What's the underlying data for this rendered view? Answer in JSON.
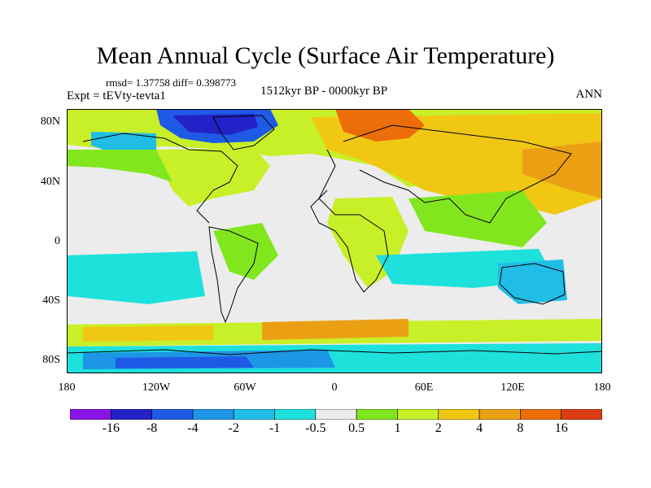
{
  "title": "Mean Annual Cycle (Surface Air Temperature)",
  "stats": "rmsd= 1.37758 diff= 0.398773",
  "experiment": "Expt = tEVty-tevta1",
  "period": "1512kyr BP - 0000kyr BP",
  "season": "ANN",
  "map": {
    "lat_labels": [
      "80N",
      "40N",
      "0",
      "40S",
      "80S"
    ],
    "lon_labels": [
      "180",
      "120W",
      "60W",
      "0",
      "60E",
      "120E",
      "180"
    ]
  },
  "colorbar": {
    "colors": [
      "#8a14e6",
      "#2222c8",
      "#1e5ae6",
      "#1e96e6",
      "#20bee6",
      "#1ee1dc",
      "#ececec",
      "#82e61e",
      "#c8f028",
      "#f0c814",
      "#eba014",
      "#eb6e0a",
      "#dc3c14"
    ],
    "labels": [
      "-16",
      "-8",
      "-4",
      "-2",
      "-1",
      "-0.5",
      "0.5",
      "1",
      "2",
      "4",
      "8",
      "16"
    ]
  }
}
